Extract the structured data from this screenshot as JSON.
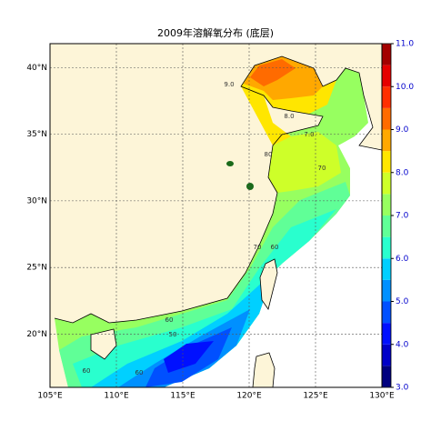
{
  "title": "2009年溶解氧分布 (底层)",
  "map": {
    "xlim": [
      105,
      130
    ],
    "ylim": [
      16,
      41.8
    ],
    "xticks": [
      {
        "value": 105,
        "label": "105°E"
      },
      {
        "value": 110,
        "label": "110°E"
      },
      {
        "value": 115,
        "label": "115°E"
      },
      {
        "value": 120,
        "label": "120°E"
      },
      {
        "value": 125,
        "label": "125°E"
      },
      {
        "value": 130,
        "label": "130°E"
      }
    ],
    "yticks": [
      {
        "value": 20,
        "label": "20°N"
      },
      {
        "value": 25,
        "label": "25°N"
      },
      {
        "value": 30,
        "label": "30°N"
      },
      {
        "value": 35,
        "label": "35°N"
      },
      {
        "value": 40,
        "label": "40°N"
      }
    ],
    "grid": true
  },
  "colorbar": {
    "range": [
      3,
      11
    ],
    "levels": [
      3,
      3.5,
      4,
      4.5,
      5,
      5.5,
      6,
      6.5,
      7,
      7.5,
      8,
      8.5,
      9,
      9.5,
      10,
      10.5,
      11
    ],
    "colors": [
      "#00007f",
      "#0000c8",
      "#0010ff",
      "#0050ff",
      "#0090ff",
      "#00d0ff",
      "#29ffce",
      "#60ff97",
      "#97ff60",
      "#ceff29",
      "#ffe600",
      "#ffa800",
      "#ff6b00",
      "#ff2f00",
      "#e50000",
      "#a30000"
    ],
    "ticks": [
      {
        "value": 3,
        "label": "3.0"
      },
      {
        "value": 4,
        "label": "4.0"
      },
      {
        "value": 5,
        "label": "5.0"
      },
      {
        "value": 6,
        "label": "6.0"
      },
      {
        "value": 7,
        "label": "7.0"
      },
      {
        "value": 8,
        "label": "8.0"
      },
      {
        "value": 9,
        "label": "9.0"
      },
      {
        "value": 10,
        "label": "10.0"
      },
      {
        "value": 11,
        "label": "11.0"
      }
    ]
  },
  "contour_labels": [
    "9.0",
    "8.0",
    "7.0",
    "70",
    "80",
    "70",
    "60",
    "60",
    "50",
    "60",
    "60"
  ]
}
